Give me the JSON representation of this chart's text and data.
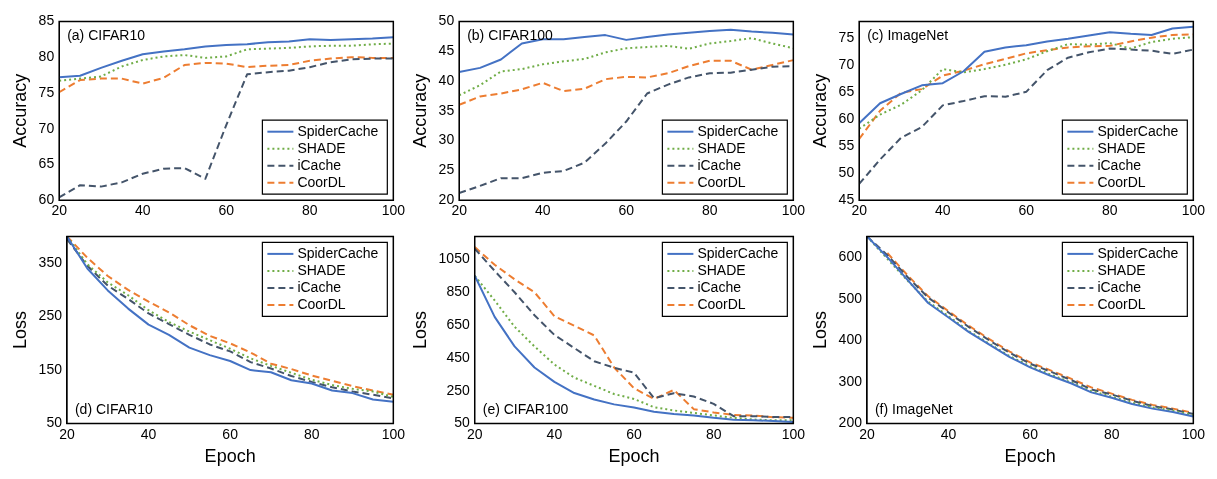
{
  "chart_data": [
    {
      "type": "line",
      "ylabel": "Accuracy",
      "annotations": [
        "(a) CIFAR10"
      ],
      "x": [
        20,
        25,
        30,
        35,
        40,
        45,
        50,
        55,
        60,
        65,
        70,
        75,
        80,
        85,
        90,
        95,
        100
      ],
      "xlim": [
        20,
        100
      ],
      "xticks": [
        20,
        40,
        60,
        80,
        100
      ],
      "ylim": [
        60,
        85
      ],
      "yticks": [
        60,
        65,
        70,
        75,
        80,
        85
      ],
      "grid": false,
      "legend": "bottom right",
      "marker": "none",
      "series": [
        {
          "name": "SpiderCache",
          "color": "#4472c4",
          "line_style": "solid",
          "values": [
            77.2,
            77.4,
            78.5,
            79.5,
            80.4,
            80.8,
            81.1,
            81.5,
            81.7,
            81.8,
            82.1,
            82.2,
            82.5,
            82.4,
            82.5,
            82.6,
            82.8
          ]
        },
        {
          "name": "SHADE",
          "color": "#70ad47",
          "line_style": "dotted",
          "values": [
            76.7,
            77.0,
            77.3,
            78.7,
            79.6,
            80.1,
            80.3,
            79.9,
            80.1,
            81.1,
            81.2,
            81.3,
            81.5,
            81.6,
            81.6,
            81.8,
            81.9
          ]
        },
        {
          "name": "iCache",
          "color": "#44546a",
          "line_style": "dashed",
          "values": [
            60.4,
            62.1,
            61.9,
            62.5,
            63.7,
            64.4,
            64.5,
            63.0,
            70.5,
            77.6,
            77.9,
            78.1,
            78.6,
            79.3,
            79.7,
            79.8,
            79.8
          ]
        },
        {
          "name": "CoorDL",
          "color": "#ed7d31",
          "line_style": "dashed",
          "values": [
            75.1,
            76.8,
            77.0,
            77.0,
            76.3,
            77.1,
            78.9,
            79.2,
            79.1,
            78.6,
            78.8,
            78.9,
            79.5,
            79.8,
            80.0,
            79.9,
            79.9
          ]
        }
      ]
    },
    {
      "type": "line",
      "ylabel": "Accuracy",
      "annotations": [
        "(b) CIFAR100"
      ],
      "x": [
        20,
        25,
        30,
        35,
        40,
        45,
        50,
        55,
        60,
        65,
        70,
        75,
        80,
        85,
        90,
        95,
        100
      ],
      "xlim": [
        20,
        100
      ],
      "xticks": [
        20,
        40,
        60,
        80,
        100
      ],
      "ylim": [
        20,
        50
      ],
      "yticks": [
        20,
        25,
        30,
        35,
        40,
        45,
        50
      ],
      "grid": false,
      "legend": "bottom right",
      "marker": "none",
      "series": [
        {
          "name": "SpiderCache",
          "color": "#4472c4",
          "line_style": "solid",
          "values": [
            41.5,
            42.2,
            43.6,
            46.3,
            47.0,
            47.0,
            47.4,
            47.7,
            46.9,
            47.4,
            47.8,
            48.1,
            48.4,
            48.6,
            48.3,
            48.1,
            47.8
          ]
        },
        {
          "name": "SHADE",
          "color": "#70ad47",
          "line_style": "dotted",
          "values": [
            37.6,
            39.3,
            41.6,
            42.0,
            42.8,
            43.3,
            43.7,
            44.8,
            45.5,
            45.7,
            45.9,
            45.4,
            46.3,
            46.7,
            47.2,
            46.3,
            45.5
          ]
        },
        {
          "name": "iCache",
          "color": "#44546a",
          "line_style": "dashed",
          "values": [
            21.2,
            22.4,
            23.7,
            23.7,
            24.6,
            24.9,
            26.3,
            29.5,
            33.2,
            37.9,
            39.4,
            40.6,
            41.3,
            41.4,
            41.9,
            42.4,
            42.5
          ]
        },
        {
          "name": "CoorDL",
          "color": "#ed7d31",
          "line_style": "dashed",
          "values": [
            36.0,
            37.4,
            37.9,
            38.6,
            39.7,
            38.3,
            38.7,
            40.3,
            40.7,
            40.6,
            41.3,
            42.5,
            43.4,
            43.4,
            41.9,
            42.7,
            43.5
          ]
        }
      ]
    },
    {
      "type": "line",
      "ylabel": "Accuracy",
      "annotations": [
        "(c) ImageNet"
      ],
      "x": [
        20,
        25,
        30,
        35,
        40,
        45,
        50,
        55,
        60,
        65,
        70,
        75,
        80,
        85,
        90,
        95,
        100
      ],
      "xlim": [
        20,
        100
      ],
      "xticks": [
        20,
        40,
        60,
        80,
        100
      ],
      "ylim": [
        45,
        78
      ],
      "yticks": [
        45,
        50,
        55,
        60,
        65,
        70,
        75
      ],
      "grid": false,
      "legend": "bottom right",
      "marker": "none",
      "series": [
        {
          "name": "SpiderCache",
          "color": "#4472c4",
          "line_style": "solid",
          "values": [
            59.2,
            62.9,
            64.6,
            66.2,
            66.6,
            68.8,
            72.4,
            73.2,
            73.6,
            74.3,
            74.8,
            75.4,
            76.0,
            75.7,
            75.5,
            76.7,
            77.0
          ]
        },
        {
          "name": "SHADE",
          "color": "#70ad47",
          "line_style": "dotted",
          "values": [
            58.2,
            60.8,
            62.6,
            65.3,
            69.2,
            68.6,
            69.2,
            70.0,
            71.0,
            72.5,
            73.8,
            73.7,
            74.0,
            73.0,
            74.2,
            74.8,
            75.1
          ]
        },
        {
          "name": "iCache",
          "color": "#44546a",
          "line_style": "dashed",
          "values": [
            48.0,
            52.5,
            56.5,
            58.5,
            62.5,
            63.3,
            64.2,
            64.1,
            65.0,
            69.0,
            71.3,
            72.3,
            73.0,
            72.8,
            72.6,
            72.0,
            72.8
          ]
        },
        {
          "name": "CoorDL",
          "color": "#ed7d31",
          "line_style": "dashed",
          "values": [
            56.3,
            61.5,
            64.8,
            65.5,
            68.0,
            68.9,
            70.1,
            71.1,
            72.1,
            72.7,
            73.2,
            73.4,
            73.5,
            74.3,
            75.0,
            75.5,
            75.6
          ]
        }
      ]
    },
    {
      "type": "line",
      "xlabel": "Epoch",
      "ylabel": "Loss",
      "annotations": [
        "(d) CIFAR10"
      ],
      "x": [
        20,
        25,
        30,
        35,
        40,
        45,
        50,
        55,
        60,
        65,
        70,
        75,
        80,
        85,
        90,
        95,
        100
      ],
      "xlim": [
        20,
        100
      ],
      "xticks": [
        20,
        40,
        60,
        80,
        100
      ],
      "ylim": [
        50,
        400
      ],
      "yticks": [
        50,
        150,
        250,
        350
      ],
      "grid": false,
      "legend": "top right",
      "marker": "none",
      "series": [
        {
          "name": "SpiderCache",
          "color": "#4472c4",
          "line_style": "solid",
          "values": [
            400,
            340,
            299,
            265,
            235,
            216,
            192,
            178,
            167,
            150,
            146,
            131,
            125,
            112,
            107,
            95,
            91
          ]
        },
        {
          "name": "SHADE",
          "color": "#70ad47",
          "line_style": "dotted",
          "values": [
            400,
            348,
            314,
            290,
            262,
            240,
            222,
            206,
            190,
            172,
            158,
            145,
            132,
            122,
            115,
            110,
            100
          ]
        },
        {
          "name": "iCache",
          "color": "#44546a",
          "line_style": "dashed",
          "values": [
            395,
            345,
            308,
            283,
            256,
            236,
            216,
            198,
            185,
            165,
            153,
            139,
            128,
            118,
            110,
            104,
            97
          ]
        },
        {
          "name": "CoorDL",
          "color": "#ed7d31",
          "line_style": "dashed",
          "values": [
            400,
            360,
            326,
            300,
            278,
            258,
            234,
            214,
            200,
            183,
            162,
            152,
            140,
            130,
            120,
            112,
            104
          ]
        }
      ]
    },
    {
      "type": "line",
      "xlabel": "Epoch",
      "ylabel": "Loss",
      "annotations": [
        "(e) CIFAR100"
      ],
      "x": [
        20,
        25,
        30,
        35,
        40,
        45,
        50,
        55,
        60,
        65,
        70,
        75,
        80,
        85,
        90,
        95,
        100
      ],
      "xlim": [
        20,
        100
      ],
      "xticks": [
        20,
        40,
        60,
        80,
        100
      ],
      "ylim": [
        50,
        1190
      ],
      "yticks": [
        50,
        250,
        450,
        650,
        850,
        1050
      ],
      "grid": false,
      "legend": "top right",
      "marker": "none",
      "series": [
        {
          "name": "SpiderCache",
          "color": "#4472c4",
          "line_style": "solid",
          "values": [
            950,
            700,
            520,
            392,
            304,
            236,
            197,
            167,
            148,
            122,
            109,
            99,
            85,
            74,
            70,
            66,
            60
          ]
        },
        {
          "name": "SHADE",
          "color": "#70ad47",
          "line_style": "dotted",
          "values": [
            950,
            800,
            640,
            520,
            410,
            330,
            280,
            230,
            200,
            150,
            130,
            115,
            100,
            85,
            75,
            70,
            70
          ]
        },
        {
          "name": "iCache",
          "color": "#44546a",
          "line_style": "dashed",
          "values": [
            1115,
            980,
            850,
            710,
            590,
            510,
            430,
            390,
            360,
            205,
            235,
            215,
            170,
            95,
            95,
            90,
            90
          ]
        },
        {
          "name": "CoorDL",
          "color": "#ed7d31",
          "line_style": "dashed",
          "values": [
            1125,
            1017,
            929,
            850,
            704,
            646,
            587,
            392,
            265,
            200,
            255,
            138,
            118,
            103,
            99,
            89,
            85
          ]
        }
      ]
    },
    {
      "type": "line",
      "xlabel": "Epoch",
      "ylabel": "Loss",
      "annotations": [
        "(f) ImageNet"
      ],
      "x": [
        20,
        25,
        30,
        35,
        40,
        45,
        50,
        55,
        60,
        65,
        70,
        75,
        80,
        85,
        90,
        95,
        100
      ],
      "xlim": [
        20,
        100
      ],
      "xticks": [
        20,
        40,
        60,
        80,
        100
      ],
      "ylim": [
        200,
        650
      ],
      "yticks": [
        200,
        300,
        400,
        500,
        600
      ],
      "grid": false,
      "legend": "top right",
      "marker": "none",
      "series": [
        {
          "name": "SpiderCache",
          "color": "#4472c4",
          "line_style": "solid",
          "values": [
            650,
            600,
            545,
            490,
            455,
            420,
            390,
            360,
            335,
            315,
            297,
            275,
            262,
            247,
            236,
            228,
            217
          ]
        },
        {
          "name": "SHADE",
          "color": "#70ad47",
          "line_style": "dotted",
          "values": [
            650,
            596,
            543,
            493,
            458,
            422,
            392,
            362,
            338,
            318,
            299,
            278,
            265,
            250,
            239,
            231,
            220
          ]
        },
        {
          "name": "iCache",
          "color": "#44546a",
          "line_style": "dashed",
          "values": [
            650,
            605,
            552,
            503,
            467,
            432,
            400,
            370,
            344,
            325,
            305,
            282,
            270,
            255,
            242,
            234,
            223
          ]
        },
        {
          "name": "CoorDL",
          "color": "#ed7d31",
          "line_style": "dashed",
          "values": [
            null,
            610,
            556,
            506,
            470,
            435,
            403,
            373,
            347,
            328,
            308,
            287,
            272,
            257,
            245,
            236,
            226
          ]
        }
      ]
    }
  ]
}
